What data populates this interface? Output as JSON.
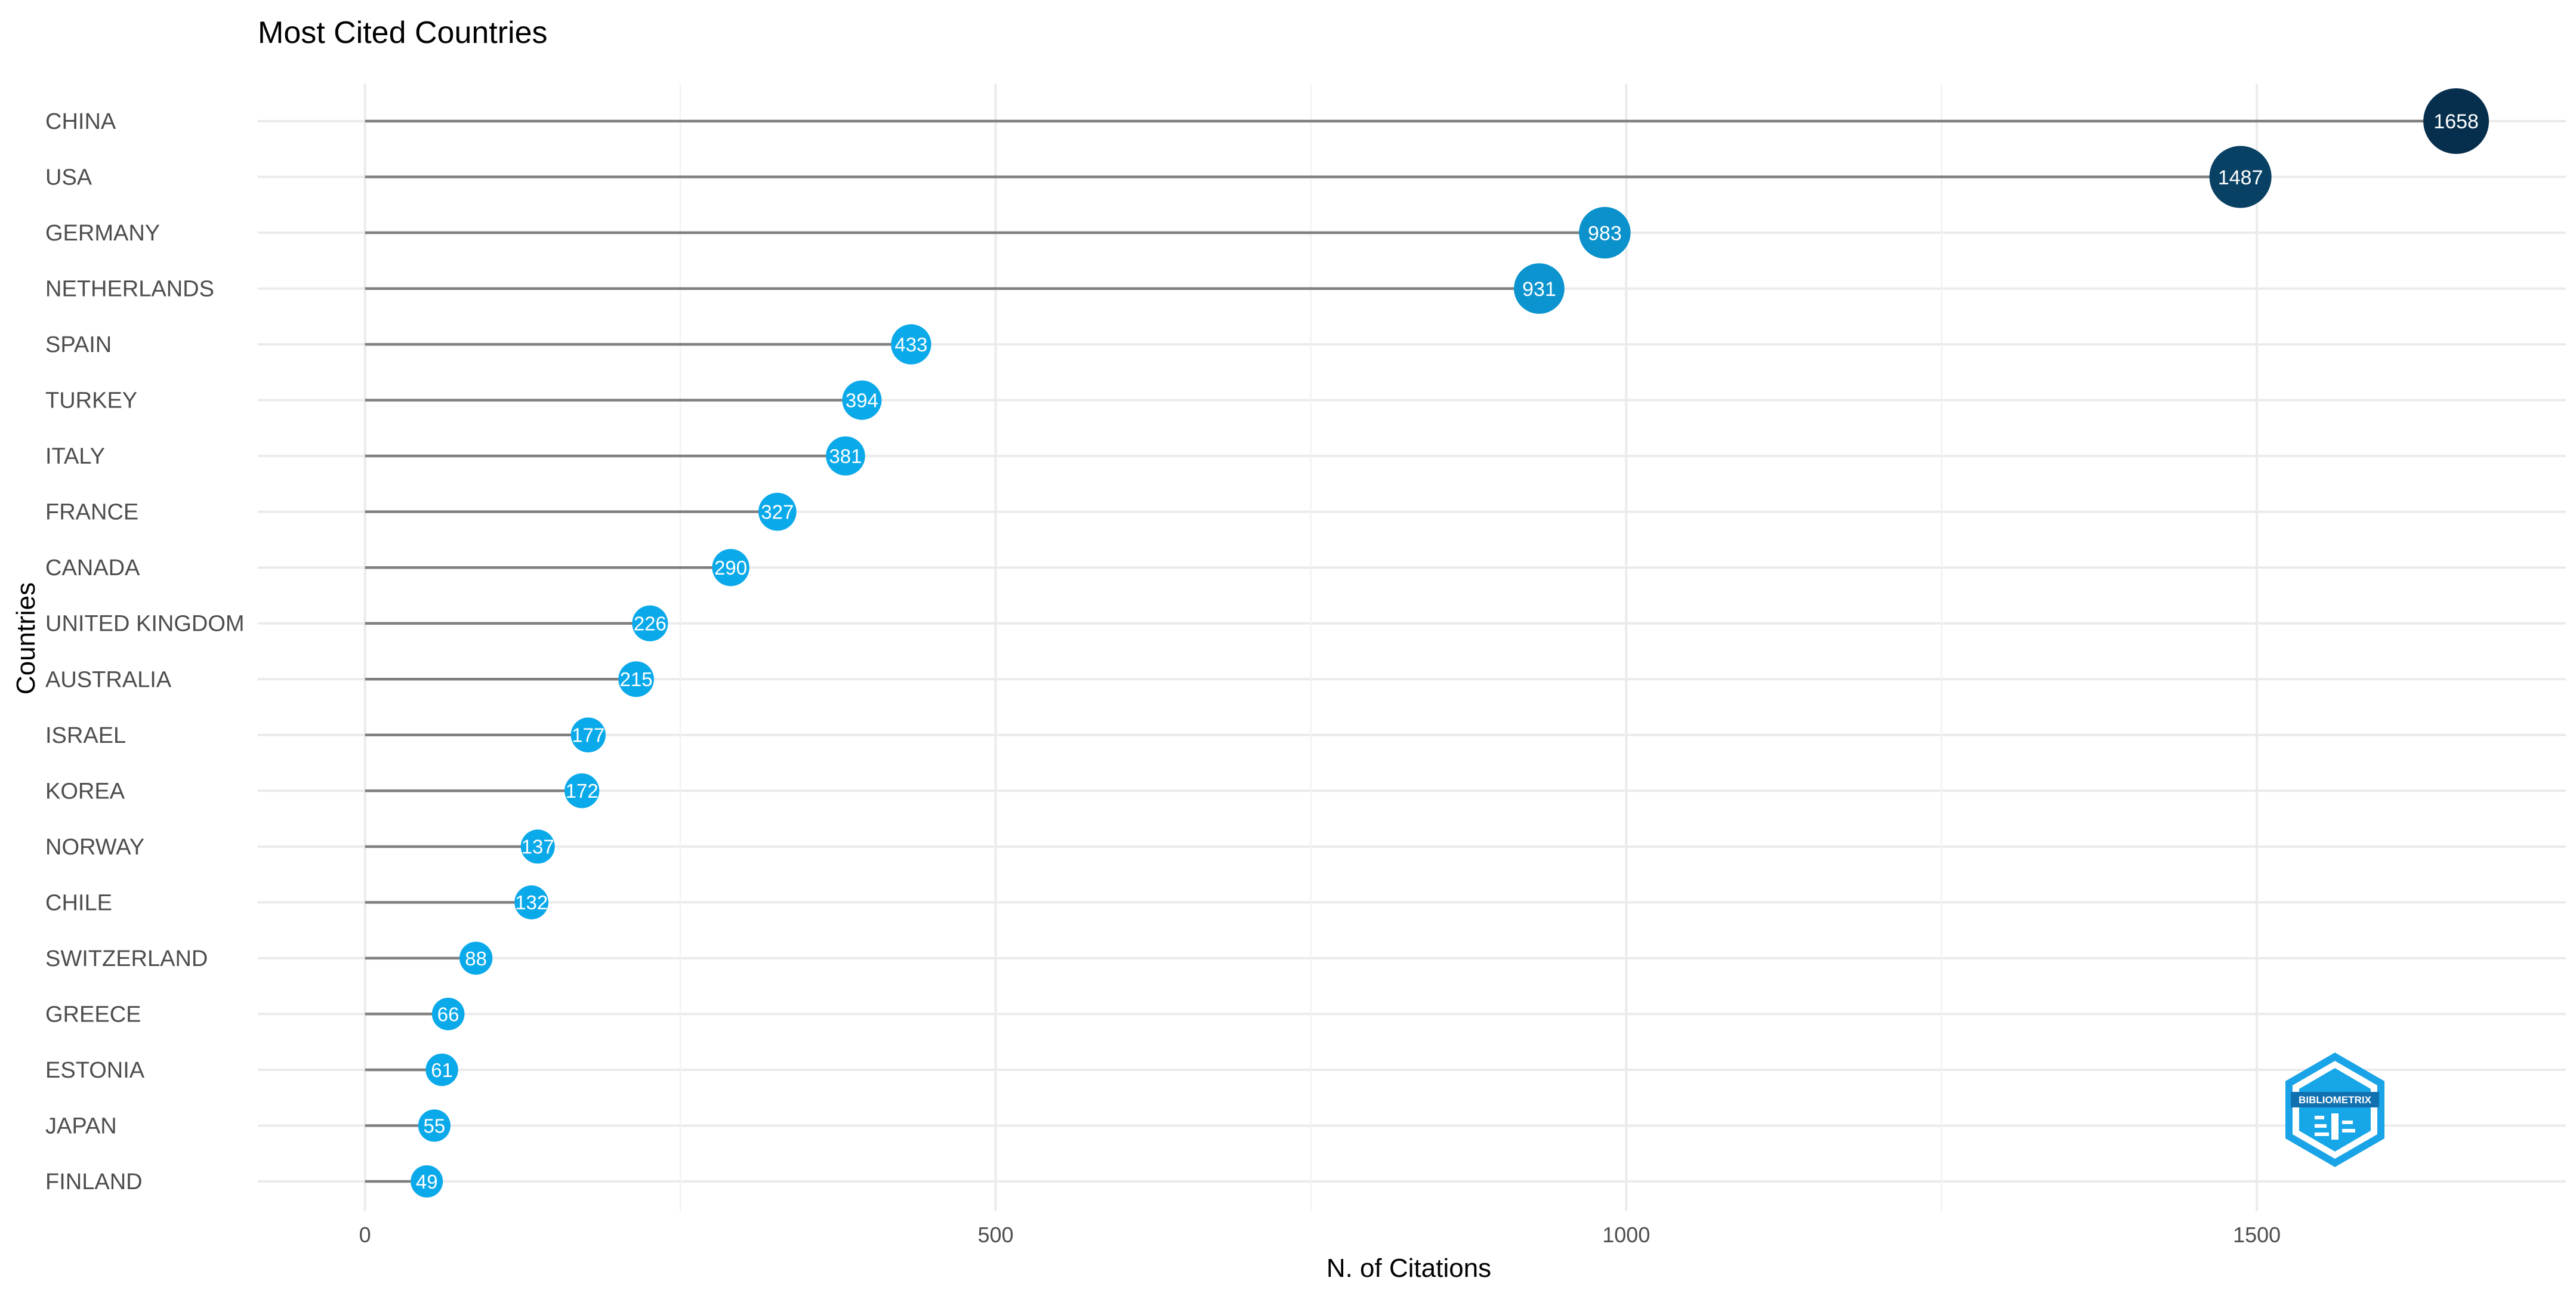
{
  "chart_data": {
    "type": "lollipop",
    "title": "Most Cited Countries",
    "xlabel": "N. of Citations",
    "ylabel": "Countries",
    "xlim": [
      -85,
      1745
    ],
    "x_ticks": [
      0,
      500,
      1000,
      1500
    ],
    "x_tick_labels": [
      "0",
      "500",
      "1000",
      "1500"
    ],
    "grid": true,
    "legend": "none",
    "categories": [
      "CHINA",
      "USA",
      "GERMANY",
      "NETHERLANDS",
      "SPAIN",
      "TURKEY",
      "ITALY",
      "FRANCE",
      "CANADA",
      "UNITED KINGDOM",
      "AUSTRALIA",
      "ISRAEL",
      "KOREA",
      "NORWAY",
      "CHILE",
      "SWITZERLAND",
      "GREECE",
      "ESTONIA",
      "JAPAN",
      "FINLAND"
    ],
    "values": [
      1658,
      1487,
      983,
      931,
      433,
      394,
      381,
      327,
      290,
      226,
      215,
      177,
      172,
      137,
      132,
      88,
      66,
      61,
      55,
      49
    ],
    "value_labels": [
      "1658",
      "1487",
      "983",
      "931",
      "433",
      "394",
      "381",
      "327",
      "290",
      "226",
      "215",
      "177",
      "172",
      "137",
      "132",
      "88",
      "66",
      "61",
      "55",
      "49"
    ],
    "color_scale": {
      "low": "#0aa9ea",
      "mid": "#0e6a98",
      "high": "#062f4d"
    }
  },
  "watermark": {
    "text": "BIBLIOMETRIX",
    "icon": "bibliometrix-logo-icon",
    "color": "#1aa3e6"
  }
}
